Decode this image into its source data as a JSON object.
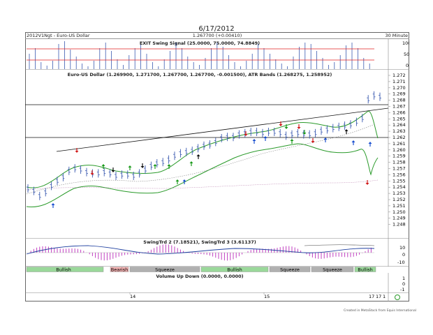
{
  "date_title": "6/17/2012",
  "header": {
    "symbol": "2012V1Ngt - Euro-US Dollar",
    "price": "1.267700 (+0.00410)",
    "interval": "30 Minute"
  },
  "panes": {
    "exit_signal_title": "EXIT Swing Signal (25.0000, 75.0000, 74.8849)",
    "price_title": "Euro-US Dollar (1.269900, 1.271700, 1.267700, 1.267700, -0.001500), ATR Bands (1.268275, 1.258952)",
    "swing_title": "SwingTrd 2 (7.18521), SwingTrd 3 (3.61137)",
    "volume_title": "Volume Up Down (0.0000, 0.0000)"
  },
  "exit_axis": [
    "100",
    "50",
    "0"
  ],
  "price_axis": [
    "1.272",
    "1.271",
    "1.270",
    "1.269",
    "1.268",
    "1.267",
    "1.266",
    "1.265",
    "1.264",
    "1.263",
    "1.262",
    "1.261",
    "1.260",
    "1.259",
    "1.258",
    "1.257",
    "1.256",
    "1.255",
    "1.254",
    "1.253",
    "1.252",
    "1.251",
    "1.250",
    "1.249",
    "1.248"
  ],
  "swing_axis": [
    "10",
    "0",
    "-10"
  ],
  "volume_axis": [
    "1",
    "0",
    "-1"
  ],
  "phase_labels": [
    "Bullish",
    "Bearish",
    "Squeeze",
    "Bullish",
    "Squeeze",
    "Squeeze",
    "Bullish"
  ],
  "x_labels": [
    "14",
    "15"
  ],
  "bottom_right_labels": [
    "17",
    "17",
    "1"
  ],
  "footer": "Created in MetaStock from Equis International",
  "colors": {
    "up_arrow": "#1a4fd0",
    "down_arrow": "#d01818",
    "green_arrow": "#1a9a1a",
    "black_arrow": "#111111",
    "bands": "#2a9a2a",
    "price_bar": "#3a5ab0",
    "exit_level": "#e02020",
    "swing_bar": "#c040c0",
    "swing_line": "#2040a0",
    "bullish_bar": "#9ad89a",
    "squeeze_bar": "#b0b0b0"
  }
}
